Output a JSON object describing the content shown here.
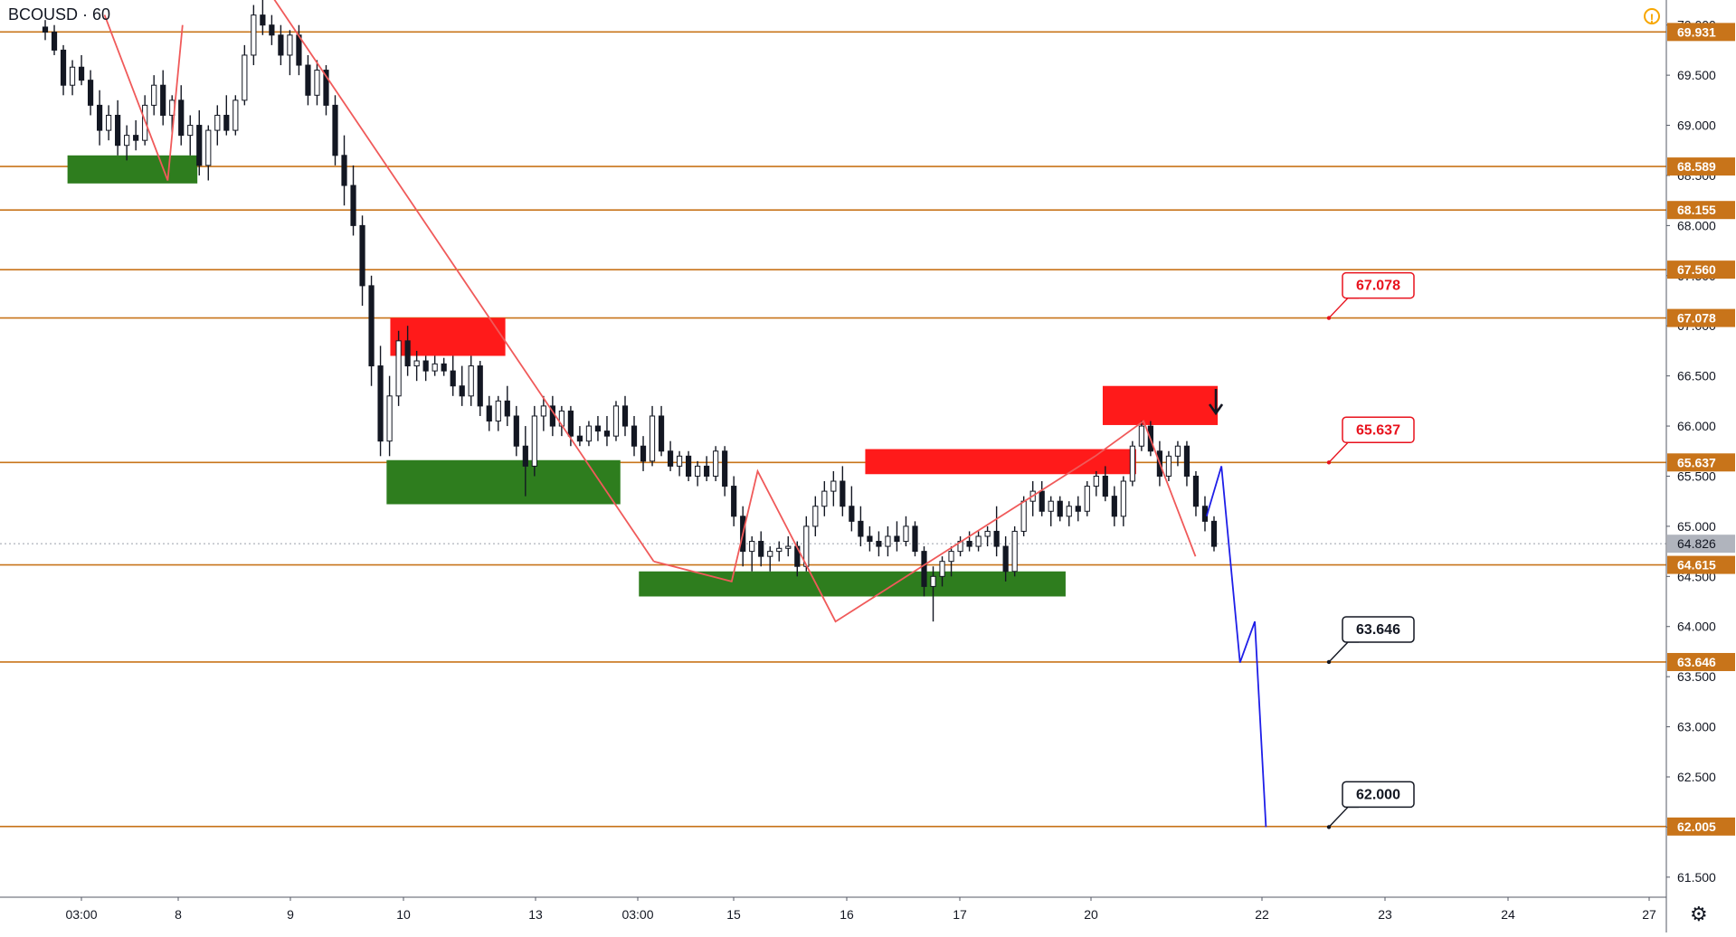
{
  "chart_data": {
    "type": "candlestick",
    "symbol": "BCOUSD",
    "interval": "60",
    "current_price": "64.826",
    "ylim": [
      61.3,
      70.25
    ],
    "y_ticks": [
      "61.500",
      "62.000",
      "62.500",
      "63.000",
      "63.500",
      "64.000",
      "64.500",
      "65.000",
      "65.500",
      "66.000",
      "66.500",
      "67.000",
      "67.500",
      "68.000",
      "68.500",
      "69.000",
      "69.500",
      "70.000"
    ],
    "x_ticks": [
      "03:00",
      "8",
      "9",
      "10",
      "13",
      "03:00",
      "15",
      "16",
      "17",
      "20",
      "22",
      "23",
      "24",
      "27"
    ],
    "horizontal_levels": [
      {
        "price": 69.931,
        "label": "69.931"
      },
      {
        "price": 68.589,
        "label": "68.589"
      },
      {
        "price": 68.155,
        "label": "68.155"
      },
      {
        "price": 67.56,
        "label": "67.560"
      },
      {
        "price": 67.078,
        "label": "67.078"
      },
      {
        "price": 65.637,
        "label": "65.637"
      },
      {
        "price": 64.615,
        "label": "64.615"
      },
      {
        "price": 63.646,
        "label": "63.646"
      },
      {
        "price": 62.005,
        "label": "62.005"
      }
    ],
    "callouts": [
      {
        "label": "67.078",
        "price": 67.078,
        "color": "#e8121d"
      },
      {
        "label": "65.637",
        "price": 65.637,
        "color": "#e8121d"
      },
      {
        "label": "63.646",
        "price": 63.646,
        "color": "#131722"
      },
      {
        "label": "62.000",
        "price": 62.0,
        "color": "#131722"
      }
    ],
    "zones": [
      {
        "kind": "support",
        "color": "#2e7d1e",
        "price_top": 68.7,
        "price_bottom": 68.42,
        "x_from": 0.6,
        "x_to": 4.1
      },
      {
        "kind": "resistance",
        "color": "#ff1a1a",
        "price_top": 67.08,
        "price_bottom": 66.7,
        "x_from": 9.3,
        "x_to": 12.4
      },
      {
        "kind": "support",
        "color": "#2e7d1e",
        "price_top": 65.66,
        "price_bottom": 65.22,
        "x_from": 9.2,
        "x_to": 15.5
      },
      {
        "kind": "resistance",
        "color": "#ff1a1a",
        "price_top": 65.77,
        "price_bottom": 65.52,
        "x_from": 22.1,
        "x_to": 29.4
      },
      {
        "kind": "resistance",
        "color": "#ff1a1a",
        "price_top": 66.4,
        "price_bottom": 66.01,
        "x_from": 28.5,
        "x_to": 31.6
      },
      {
        "kind": "support",
        "color": "#2e7d1e",
        "price_top": 64.55,
        "price_bottom": 64.3,
        "x_from": 16.0,
        "x_to": 27.5
      }
    ],
    "wave_lines": [
      {
        "color": "#f05a5a",
        "points": [
          [
            1.6,
            70.1
          ],
          [
            3.3,
            68.45
          ],
          [
            3.7,
            70.0
          ]
        ]
      },
      {
        "color": "#f05a5a",
        "points": [
          [
            6.0,
            70.35
          ],
          [
            16.4,
            64.65
          ]
        ]
      },
      {
        "color": "#f05a5a",
        "points": [
          [
            16.4,
            64.65
          ],
          [
            18.5,
            64.45
          ],
          [
            19.2,
            65.55
          ],
          [
            21.3,
            64.05
          ],
          [
            28.3,
            65.7
          ],
          [
            29.6,
            66.05
          ],
          [
            31.0,
            64.7
          ]
        ]
      },
      {
        "color": "#1e1ee8",
        "points": [
          [
            31.3,
            65.1
          ],
          [
            31.7,
            65.6
          ],
          [
            32.2,
            63.64
          ],
          [
            32.6,
            64.05
          ],
          [
            32.9,
            62.0
          ]
        ]
      }
    ],
    "arrow": {
      "price": 66.1,
      "x": 31.55,
      "direction": "down"
    },
    "candles": [
      {
        "o": 69.98,
        "h": 70.05,
        "l": 69.85,
        "c": 69.93
      },
      {
        "o": 69.93,
        "h": 70.0,
        "l": 69.7,
        "c": 69.75
      },
      {
        "o": 69.75,
        "h": 69.8,
        "l": 69.3,
        "c": 69.4
      },
      {
        "o": 69.4,
        "h": 69.65,
        "l": 69.3,
        "c": 69.58
      },
      {
        "o": 69.58,
        "h": 69.7,
        "l": 69.4,
        "c": 69.45
      },
      {
        "o": 69.45,
        "h": 69.55,
        "l": 69.1,
        "c": 69.2
      },
      {
        "o": 69.2,
        "h": 69.35,
        "l": 68.8,
        "c": 68.95
      },
      {
        "o": 68.95,
        "h": 69.2,
        "l": 68.85,
        "c": 69.1
      },
      {
        "o": 69.1,
        "h": 69.25,
        "l": 68.7,
        "c": 68.8
      },
      {
        "o": 68.8,
        "h": 69.0,
        "l": 68.65,
        "c": 68.9
      },
      {
        "o": 68.9,
        "h": 69.05,
        "l": 68.75,
        "c": 68.85
      },
      {
        "o": 68.85,
        "h": 69.3,
        "l": 68.8,
        "c": 69.2
      },
      {
        "o": 69.2,
        "h": 69.5,
        "l": 69.1,
        "c": 69.4
      },
      {
        "o": 69.4,
        "h": 69.55,
        "l": 69.0,
        "c": 69.1
      },
      {
        "o": 69.1,
        "h": 69.3,
        "l": 68.9,
        "c": 69.25
      },
      {
        "o": 69.25,
        "h": 69.4,
        "l": 68.8,
        "c": 68.9
      },
      {
        "o": 68.9,
        "h": 69.1,
        "l": 68.7,
        "c": 69.0
      },
      {
        "o": 69.0,
        "h": 69.15,
        "l": 68.5,
        "c": 68.6
      },
      {
        "o": 68.6,
        "h": 69.0,
        "l": 68.45,
        "c": 68.95
      },
      {
        "o": 68.95,
        "h": 69.2,
        "l": 68.8,
        "c": 69.1
      },
      {
        "o": 69.1,
        "h": 69.3,
        "l": 68.9,
        "c": 68.95
      },
      {
        "o": 68.95,
        "h": 69.3,
        "l": 68.9,
        "c": 69.25
      },
      {
        "o": 69.25,
        "h": 69.8,
        "l": 69.2,
        "c": 69.7
      },
      {
        "o": 69.7,
        "h": 70.2,
        "l": 69.6,
        "c": 70.1
      },
      {
        "o": 70.1,
        "h": 70.25,
        "l": 69.9,
        "c": 70.0
      },
      {
        "o": 70.0,
        "h": 70.1,
        "l": 69.8,
        "c": 69.9
      },
      {
        "o": 69.9,
        "h": 70.0,
        "l": 69.6,
        "c": 69.7
      },
      {
        "o": 69.7,
        "h": 69.95,
        "l": 69.5,
        "c": 69.9
      },
      {
        "o": 69.9,
        "h": 70.0,
        "l": 69.5,
        "c": 69.6
      },
      {
        "o": 69.6,
        "h": 69.7,
        "l": 69.2,
        "c": 69.3
      },
      {
        "o": 69.3,
        "h": 69.65,
        "l": 69.2,
        "c": 69.55
      },
      {
        "o": 69.55,
        "h": 69.6,
        "l": 69.1,
        "c": 69.2
      },
      {
        "o": 69.2,
        "h": 69.3,
        "l": 68.6,
        "c": 68.7
      },
      {
        "o": 68.7,
        "h": 68.9,
        "l": 68.2,
        "c": 68.4
      },
      {
        "o": 68.4,
        "h": 68.6,
        "l": 67.9,
        "c": 68.0
      },
      {
        "o": 68.0,
        "h": 68.1,
        "l": 67.2,
        "c": 67.4
      },
      {
        "o": 67.4,
        "h": 67.5,
        "l": 66.4,
        "c": 66.6
      },
      {
        "o": 66.6,
        "h": 66.8,
        "l": 65.7,
        "c": 65.85
      },
      {
        "o": 65.85,
        "h": 66.5,
        "l": 65.7,
        "c": 66.3
      },
      {
        "o": 66.3,
        "h": 66.95,
        "l": 66.2,
        "c": 66.85
      },
      {
        "o": 66.85,
        "h": 67.0,
        "l": 66.5,
        "c": 66.6
      },
      {
        "o": 66.6,
        "h": 66.75,
        "l": 66.45,
        "c": 66.65
      },
      {
        "o": 66.65,
        "h": 66.7,
        "l": 66.45,
        "c": 66.55
      },
      {
        "o": 66.55,
        "h": 66.7,
        "l": 66.5,
        "c": 66.62
      },
      {
        "o": 66.62,
        "h": 66.68,
        "l": 66.5,
        "c": 66.55
      },
      {
        "o": 66.55,
        "h": 66.7,
        "l": 66.3,
        "c": 66.4
      },
      {
        "o": 66.4,
        "h": 66.6,
        "l": 66.2,
        "c": 66.3
      },
      {
        "o": 66.3,
        "h": 66.7,
        "l": 66.2,
        "c": 66.6
      },
      {
        "o": 66.6,
        "h": 66.65,
        "l": 66.1,
        "c": 66.2
      },
      {
        "o": 66.2,
        "h": 66.3,
        "l": 65.95,
        "c": 66.05
      },
      {
        "o": 66.05,
        "h": 66.3,
        "l": 65.95,
        "c": 66.25
      },
      {
        "o": 66.25,
        "h": 66.4,
        "l": 66.0,
        "c": 66.1
      },
      {
        "o": 66.1,
        "h": 66.2,
        "l": 65.7,
        "c": 65.8
      },
      {
        "o": 65.8,
        "h": 66.0,
        "l": 65.3,
        "c": 65.6
      },
      {
        "o": 65.6,
        "h": 66.2,
        "l": 65.5,
        "c": 66.1
      },
      {
        "o": 66.1,
        "h": 66.3,
        "l": 65.95,
        "c": 66.2
      },
      {
        "o": 66.2,
        "h": 66.3,
        "l": 65.9,
        "c": 66.0
      },
      {
        "o": 66.0,
        "h": 66.2,
        "l": 65.9,
        "c": 66.15
      },
      {
        "o": 66.15,
        "h": 66.2,
        "l": 65.8,
        "c": 65.9
      },
      {
        "o": 65.9,
        "h": 66.0,
        "l": 65.8,
        "c": 65.85
      },
      {
        "o": 65.85,
        "h": 66.05,
        "l": 65.8,
        "c": 66.0
      },
      {
        "o": 66.0,
        "h": 66.1,
        "l": 65.85,
        "c": 65.95
      },
      {
        "o": 65.95,
        "h": 66.1,
        "l": 65.8,
        "c": 65.9
      },
      {
        "o": 65.9,
        "h": 66.25,
        "l": 65.85,
        "c": 66.2
      },
      {
        "o": 66.2,
        "h": 66.3,
        "l": 65.9,
        "c": 66.0
      },
      {
        "o": 66.0,
        "h": 66.1,
        "l": 65.7,
        "c": 65.8
      },
      {
        "o": 65.8,
        "h": 65.9,
        "l": 65.55,
        "c": 65.65
      },
      {
        "o": 65.65,
        "h": 66.2,
        "l": 65.6,
        "c": 66.1
      },
      {
        "o": 66.1,
        "h": 66.2,
        "l": 65.7,
        "c": 65.75
      },
      {
        "o": 65.75,
        "h": 65.85,
        "l": 65.55,
        "c": 65.6
      },
      {
        "o": 65.6,
        "h": 65.75,
        "l": 65.5,
        "c": 65.7
      },
      {
        "o": 65.7,
        "h": 65.75,
        "l": 65.45,
        "c": 65.5
      },
      {
        "o": 65.5,
        "h": 65.65,
        "l": 65.4,
        "c": 65.6
      },
      {
        "o": 65.6,
        "h": 65.7,
        "l": 65.45,
        "c": 65.5
      },
      {
        "o": 65.5,
        "h": 65.8,
        "l": 65.45,
        "c": 65.75
      },
      {
        "o": 65.75,
        "h": 65.8,
        "l": 65.3,
        "c": 65.4
      },
      {
        "o": 65.4,
        "h": 65.5,
        "l": 65.0,
        "c": 65.1
      },
      {
        "o": 65.1,
        "h": 65.2,
        "l": 64.6,
        "c": 64.75
      },
      {
        "o": 64.75,
        "h": 64.9,
        "l": 64.55,
        "c": 64.85
      },
      {
        "o": 64.85,
        "h": 64.95,
        "l": 64.6,
        "c": 64.7
      },
      {
        "o": 64.7,
        "h": 64.8,
        "l": 64.55,
        "c": 64.75
      },
      {
        "o": 64.75,
        "h": 64.85,
        "l": 64.65,
        "c": 64.78
      },
      {
        "o": 64.78,
        "h": 64.9,
        "l": 64.7,
        "c": 64.8
      },
      {
        "o": 64.8,
        "h": 64.85,
        "l": 64.5,
        "c": 64.6
      },
      {
        "o": 64.6,
        "h": 65.1,
        "l": 64.55,
        "c": 65.0
      },
      {
        "o": 65.0,
        "h": 65.3,
        "l": 64.9,
        "c": 65.2
      },
      {
        "o": 65.2,
        "h": 65.45,
        "l": 65.1,
        "c": 65.35
      },
      {
        "o": 65.35,
        "h": 65.55,
        "l": 65.2,
        "c": 65.45
      },
      {
        "o": 65.45,
        "h": 65.6,
        "l": 65.1,
        "c": 65.2
      },
      {
        "o": 65.2,
        "h": 65.4,
        "l": 64.95,
        "c": 65.05
      },
      {
        "o": 65.05,
        "h": 65.2,
        "l": 64.8,
        "c": 64.9
      },
      {
        "o": 64.9,
        "h": 65.0,
        "l": 64.75,
        "c": 64.85
      },
      {
        "o": 64.85,
        "h": 64.95,
        "l": 64.7,
        "c": 64.8
      },
      {
        "o": 64.8,
        "h": 65.0,
        "l": 64.7,
        "c": 64.9
      },
      {
        "o": 64.9,
        "h": 65.05,
        "l": 64.75,
        "c": 64.85
      },
      {
        "o": 64.85,
        "h": 65.1,
        "l": 64.8,
        "c": 65.0
      },
      {
        "o": 65.0,
        "h": 65.05,
        "l": 64.7,
        "c": 64.75
      },
      {
        "o": 64.75,
        "h": 64.8,
        "l": 64.3,
        "c": 64.4
      },
      {
        "o": 64.4,
        "h": 64.6,
        "l": 64.05,
        "c": 64.5
      },
      {
        "o": 64.5,
        "h": 64.7,
        "l": 64.4,
        "c": 64.65
      },
      {
        "o": 64.65,
        "h": 64.8,
        "l": 64.5,
        "c": 64.75
      },
      {
        "o": 64.75,
        "h": 64.9,
        "l": 64.7,
        "c": 64.85
      },
      {
        "o": 64.85,
        "h": 64.95,
        "l": 64.75,
        "c": 64.8
      },
      {
        "o": 64.8,
        "h": 64.95,
        "l": 64.75,
        "c": 64.9
      },
      {
        "o": 64.9,
        "h": 65.0,
        "l": 64.8,
        "c": 64.95
      },
      {
        "o": 64.95,
        "h": 65.2,
        "l": 64.7,
        "c": 64.8
      },
      {
        "o": 64.8,
        "h": 64.9,
        "l": 64.45,
        "c": 64.55
      },
      {
        "o": 64.55,
        "h": 65.0,
        "l": 64.5,
        "c": 64.95
      },
      {
        "o": 64.95,
        "h": 65.3,
        "l": 64.9,
        "c": 65.25
      },
      {
        "o": 65.25,
        "h": 65.45,
        "l": 65.1,
        "c": 65.35
      },
      {
        "o": 65.35,
        "h": 65.45,
        "l": 65.1,
        "c": 65.15
      },
      {
        "o": 65.15,
        "h": 65.3,
        "l": 65.0,
        "c": 65.25
      },
      {
        "o": 65.25,
        "h": 65.3,
        "l": 65.05,
        "c": 65.1
      },
      {
        "o": 65.1,
        "h": 65.25,
        "l": 65.0,
        "c": 65.2
      },
      {
        "o": 65.2,
        "h": 65.3,
        "l": 65.05,
        "c": 65.15
      },
      {
        "o": 65.15,
        "h": 65.45,
        "l": 65.1,
        "c": 65.4
      },
      {
        "o": 65.4,
        "h": 65.55,
        "l": 65.3,
        "c": 65.5
      },
      {
        "o": 65.5,
        "h": 65.6,
        "l": 65.25,
        "c": 65.3
      },
      {
        "o": 65.3,
        "h": 65.4,
        "l": 65.0,
        "c": 65.1
      },
      {
        "o": 65.1,
        "h": 65.5,
        "l": 65.0,
        "c": 65.45
      },
      {
        "o": 65.45,
        "h": 65.85,
        "l": 65.4,
        "c": 65.8
      },
      {
        "o": 65.8,
        "h": 66.05,
        "l": 65.75,
        "c": 66.0
      },
      {
        "o": 66.0,
        "h": 66.05,
        "l": 65.7,
        "c": 65.75
      },
      {
        "o": 65.75,
        "h": 65.85,
        "l": 65.4,
        "c": 65.5
      },
      {
        "o": 65.5,
        "h": 65.75,
        "l": 65.45,
        "c": 65.7
      },
      {
        "o": 65.7,
        "h": 65.85,
        "l": 65.6,
        "c": 65.8
      },
      {
        "o": 65.8,
        "h": 65.85,
        "l": 65.4,
        "c": 65.5
      },
      {
        "o": 65.5,
        "h": 65.55,
        "l": 65.1,
        "c": 65.2
      },
      {
        "o": 65.2,
        "h": 65.3,
        "l": 64.95,
        "c": 65.05
      },
      {
        "o": 65.05,
        "h": 65.1,
        "l": 64.75,
        "c": 64.8
      }
    ]
  }
}
